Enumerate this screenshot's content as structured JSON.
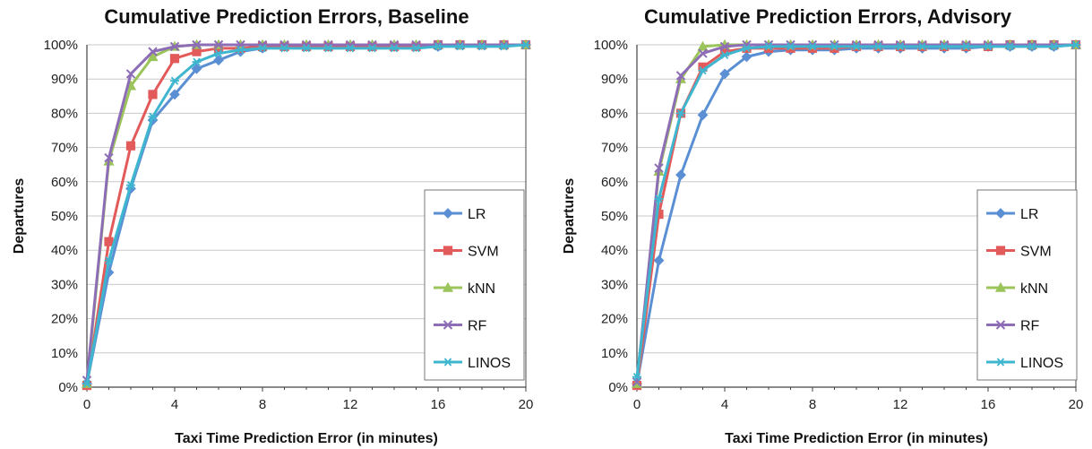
{
  "colors": {
    "LR": "#5b8fd4",
    "SVM": "#e35a5a",
    "kNN": "#9bc45a",
    "RF": "#8d6db5",
    "LINOS": "#3fb6cf"
  },
  "chart_data": [
    {
      "type": "line",
      "title": "Cumulative Prediction Errors, Baseline",
      "xlabel": "Taxi Time Prediction Error (in minutes)",
      "ylabel": "Departures",
      "xlim": [
        0,
        20
      ],
      "ylim": [
        0,
        100
      ],
      "x_ticks": [
        "0",
        "4",
        "8",
        "12",
        "16",
        "20"
      ],
      "y_ticks": [
        "0%",
        "10%",
        "20%",
        "30%",
        "40%",
        "50%",
        "60%",
        "70%",
        "80%",
        "90%",
        "100%"
      ],
      "grid": "horizontal",
      "legend": "bottom-right",
      "x": [
        0,
        1,
        2,
        3,
        4,
        5,
        6,
        7,
        8,
        9,
        10,
        11,
        12,
        13,
        14,
        15,
        16,
        17,
        18,
        19,
        20
      ],
      "series": [
        {
          "name": "LR",
          "marker": "diamond",
          "values": [
            1,
            33.5,
            58,
            78,
            85.5,
            93,
            95.5,
            98,
            99,
            99.5,
            99.5,
            99.5,
            99.5,
            99.5,
            99.5,
            99.5,
            99.5,
            100,
            100,
            100,
            100
          ]
        },
        {
          "name": "SVM",
          "marker": "square",
          "values": [
            0.5,
            42.5,
            70.5,
            85.5,
            96,
            98,
            99,
            99,
            99.5,
            99.5,
            99.5,
            99.5,
            99.5,
            99.5,
            99.5,
            99.5,
            100,
            100,
            100,
            100,
            100
          ]
        },
        {
          "name": "kNN",
          "marker": "triangle",
          "values": [
            1,
            66,
            88,
            96.5,
            99.5,
            100,
            100,
            100,
            100,
            100,
            100,
            100,
            100,
            100,
            100,
            100,
            100,
            100,
            100,
            100,
            100
          ]
        },
        {
          "name": "RF",
          "marker": "x",
          "values": [
            2,
            67,
            91.5,
            98,
            99.5,
            100,
            100,
            100,
            100,
            100,
            100,
            100,
            100,
            100,
            100,
            100,
            100,
            100,
            100,
            100,
            100
          ]
        },
        {
          "name": "LINOS",
          "marker": "star",
          "values": [
            1,
            37,
            59,
            79,
            89.5,
            95,
            97.5,
            98.5,
            99,
            99,
            99,
            99,
            99,
            99,
            99,
            99,
            99.5,
            99.5,
            99.5,
            99.5,
            100
          ]
        }
      ]
    },
    {
      "type": "line",
      "title": "Cumulative Prediction Errors, Advisory",
      "xlabel": "Taxi Time Prediction Error (in minutes)",
      "ylabel": "Departures",
      "xlim": [
        0,
        20
      ],
      "ylim": [
        0,
        100
      ],
      "x_ticks": [
        "0",
        "4",
        "8",
        "12",
        "16",
        "20"
      ],
      "y_ticks": [
        "0%",
        "10%",
        "20%",
        "30%",
        "40%",
        "50%",
        "60%",
        "70%",
        "80%",
        "90%",
        "100%"
      ],
      "grid": "horizontal",
      "legend": "bottom-right",
      "x": [
        0,
        1,
        2,
        3,
        4,
        5,
        6,
        7,
        8,
        9,
        10,
        11,
        12,
        13,
        14,
        15,
        16,
        17,
        18,
        19,
        20
      ],
      "series": [
        {
          "name": "LR",
          "marker": "diamond",
          "values": [
            1,
            37,
            62,
            79.5,
            91.5,
            96.5,
            98,
            98.5,
            98.5,
            98.5,
            99,
            99,
            99,
            99,
            99,
            99,
            99.5,
            99.5,
            99.5,
            99.5,
            100
          ]
        },
        {
          "name": "SVM",
          "marker": "square",
          "values": [
            0.5,
            50.5,
            80,
            93.5,
            98,
            99,
            99,
            99,
            99,
            99,
            99.5,
            99.5,
            99.5,
            99.5,
            99.5,
            99.5,
            99.5,
            100,
            100,
            100,
            100
          ]
        },
        {
          "name": "kNN",
          "marker": "triangle",
          "values": [
            1,
            63,
            90,
            99.5,
            100,
            100,
            100,
            100,
            100,
            100,
            100,
            100,
            100,
            100,
            100,
            100,
            100,
            100,
            100,
            100,
            100
          ]
        },
        {
          "name": "RF",
          "marker": "x",
          "values": [
            1.5,
            64,
            91,
            97.5,
            99.5,
            100,
            100,
            100,
            100,
            100,
            100,
            100,
            100,
            100,
            100,
            100,
            100,
            100,
            100,
            100,
            100
          ]
        },
        {
          "name": "LINOS",
          "marker": "star",
          "values": [
            3,
            55,
            80,
            92.5,
            97,
            99,
            99.5,
            99.5,
            99.5,
            99.5,
            99.5,
            99.5,
            99.5,
            99.5,
            99.5,
            99.5,
            99.5,
            99.5,
            99.5,
            99.5,
            100
          ]
        }
      ]
    }
  ]
}
